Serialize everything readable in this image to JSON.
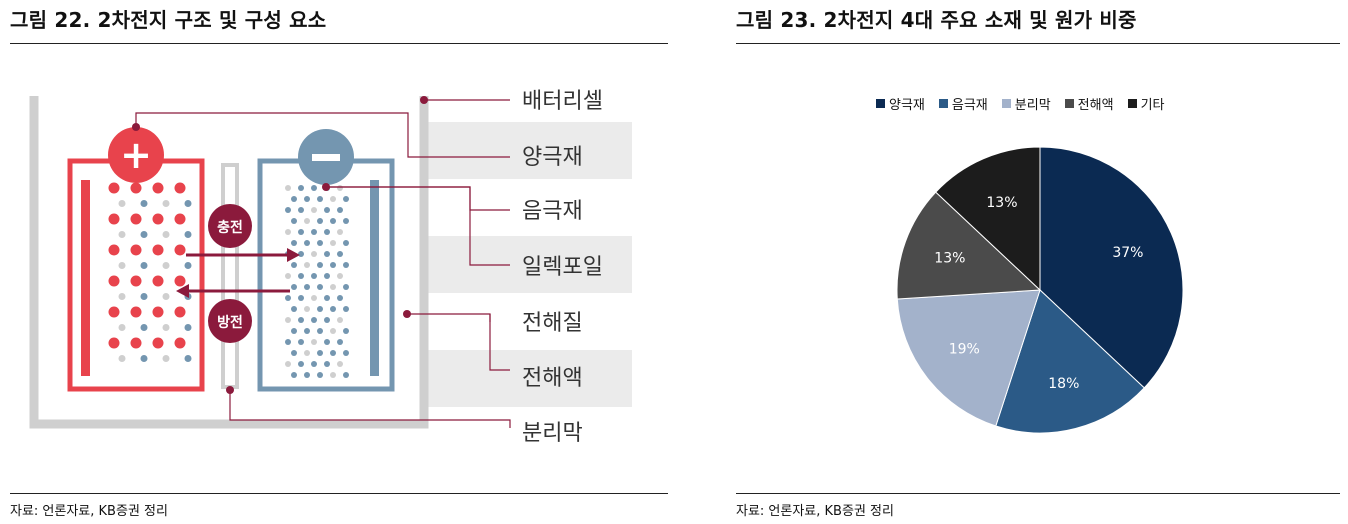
{
  "left": {
    "title": "그림 22. 2차전지 구조 및 구성 요소",
    "source": "자료: 언론자료, KB증권 정리",
    "diagram": {
      "plus_symbol": "+",
      "minus_symbol": "−",
      "charge_label": "충전",
      "discharge_label": "방전",
      "components": [
        "배터리셀",
        "양극재",
        "음극재",
        "일렉포일",
        "전해질",
        "전해액",
        "분리막"
      ]
    }
  },
  "right": {
    "title": "그림 23. 2차전지 4대 주요 소재 및 원가 비중",
    "source": "자료: 언론자료, KB증권 정리"
  },
  "chart_data": {
    "type": "pie",
    "title": "그림 23. 2차전지 4대 주요 소재 및 원가 비중",
    "legend_position": "top",
    "categories": [
      "양극재",
      "음극재",
      "분리막",
      "전해액",
      "기타"
    ],
    "values": [
      37,
      18,
      19,
      13,
      13
    ],
    "labels": [
      "37%",
      "18%",
      "19%",
      "13%",
      "13%"
    ],
    "colors": [
      "#0b2a52",
      "#2b5a87",
      "#a3b2cb",
      "#4b4b4b",
      "#1c1c1c"
    ],
    "label_colors": [
      "#ffffff",
      "#ffffff",
      "#ffffff",
      "#ffffff",
      "#ffffff"
    ]
  }
}
